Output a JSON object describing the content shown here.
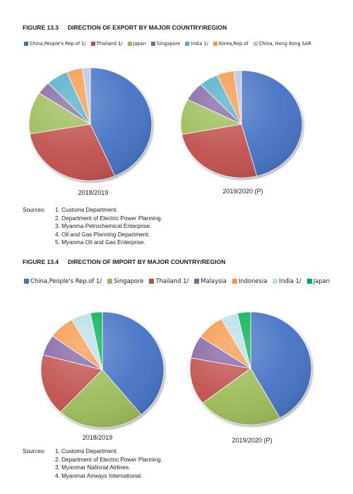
{
  "figures": [
    {
      "number": "FIGURE 13.3",
      "title": "DIRECTION OF EXPORT BY MAJOR COUNTRY/REGION",
      "legend": [
        {
          "label": "China,People's Rep.of 1/",
          "color": "#4472c4"
        },
        {
          "label": "Thailand 1/",
          "color": "#c0504d"
        },
        {
          "label": "Japan",
          "color": "#9bbb59"
        },
        {
          "label": "Singapore",
          "color": "#8064a2"
        },
        {
          "label": "India 1/",
          "color": "#4bacc6"
        },
        {
          "label": "Korea,Rep.of",
          "color": "#f79646"
        },
        {
          "label": "China, Hong Kong SAR",
          "color": "#b5c6e0"
        }
      ],
      "periods": [
        "2018/2019",
        "2019/2020 (P)"
      ],
      "sources_label": "Sources:",
      "sources": [
        "1. Customs Department.",
        "2. Department of Electric Power Planning.",
        "3. Myanma Petrochemical Enterprise.",
        "4. Oil and Gas Planning Department.",
        "5. Myanma Oil and Gas Enterprise."
      ]
    },
    {
      "number": "FIGURE 13.4",
      "title": "DIRECTION OF IMPORT BY MAJOR COUNTRY/REGION",
      "legend": [
        {
          "label": "China,People's Rep.of 1/",
          "color": "#4472c4"
        },
        {
          "label": "Singapore",
          "color": "#9bbb59"
        },
        {
          "label": "Thailand 1/",
          "color": "#c0504d"
        },
        {
          "label": "Malaysia",
          "color": "#8064a2"
        },
        {
          "label": "Indonesia",
          "color": "#f79646"
        },
        {
          "label": "India 1/",
          "color": "#b7dee8"
        },
        {
          "label": "Japan",
          "color": "#00b050"
        }
      ],
      "periods": [
        "2018/2019",
        "2019/2020 (P)"
      ],
      "sources_label": "Sources:",
      "sources": [
        "1. Customs Department.",
        "2. Department of Electric Power Planning.",
        "3. Myanmar National Airlines.",
        "4. Myanmar Airways International."
      ]
    }
  ],
  "chart_data": [
    {
      "type": "pie",
      "title": "DIRECTION OF EXPORT BY MAJOR COUNTRY/REGION",
      "subtitle": "2018/2019",
      "categories": [
        "China,People's Rep.of 1/",
        "Thailand 1/",
        "Japan",
        "Singapore",
        "India 1/",
        "Korea,Rep.of",
        "China, Hong Kong SAR"
      ],
      "values": [
        41.5,
        27.5,
        11.5,
        3.5,
        5.5,
        4.0,
        2.0
      ],
      "colors": [
        "#4472c4",
        "#c0504d",
        "#9bbb59",
        "#8064a2",
        "#4bacc6",
        "#f79646",
        "#b5c6e0"
      ]
    },
    {
      "type": "pie",
      "title": "DIRECTION OF EXPORT BY MAJOR COUNTRY/REGION",
      "subtitle": "2019/2020 (P)",
      "categories": [
        "China,People's Rep.of 1/",
        "Thailand 1/",
        "Japan",
        "Singapore",
        "India 1/",
        "Korea,Rep.of",
        "China, Hong Kong SAR"
      ],
      "values": [
        45.0,
        25.5,
        10.5,
        5.5,
        5.0,
        4.5,
        2.0
      ],
      "colors": [
        "#4472c4",
        "#c0504d",
        "#9bbb59",
        "#8064a2",
        "#4bacc6",
        "#f79646",
        "#b5c6e0"
      ]
    },
    {
      "type": "pie",
      "title": "DIRECTION OF IMPORT BY MAJOR COUNTRY/REGION",
      "subtitle": "2018/2019",
      "categories": [
        "China,People's Rep.of 1/",
        "Singapore",
        "Thailand 1/",
        "Malaysia",
        "Indonesia",
        "India 1/",
        "Japan"
      ],
      "values": [
        37.5,
        22.0,
        16.5,
        5.5,
        6.5,
        5.0,
        3.0
      ],
      "colors": [
        "#4472c4",
        "#9bbb59",
        "#c0504d",
        "#8064a2",
        "#f79646",
        "#b7dee8",
        "#00b050"
      ]
    },
    {
      "type": "pie",
      "title": "DIRECTION OF IMPORT BY MAJOR COUNTRY/REGION",
      "subtitle": "2019/2020 (P)",
      "categories": [
        "China,People's Rep.of 1/",
        "Singapore",
        "Thailand 1/",
        "Malaysia",
        "Indonesia",
        "India 1/",
        "Japan"
      ],
      "values": [
        42.0,
        22.5,
        13.5,
        6.5,
        7.5,
        4.5,
        3.5
      ],
      "colors": [
        "#4472c4",
        "#9bbb59",
        "#c0504d",
        "#8064a2",
        "#f79646",
        "#b7dee8",
        "#00b050"
      ]
    }
  ]
}
